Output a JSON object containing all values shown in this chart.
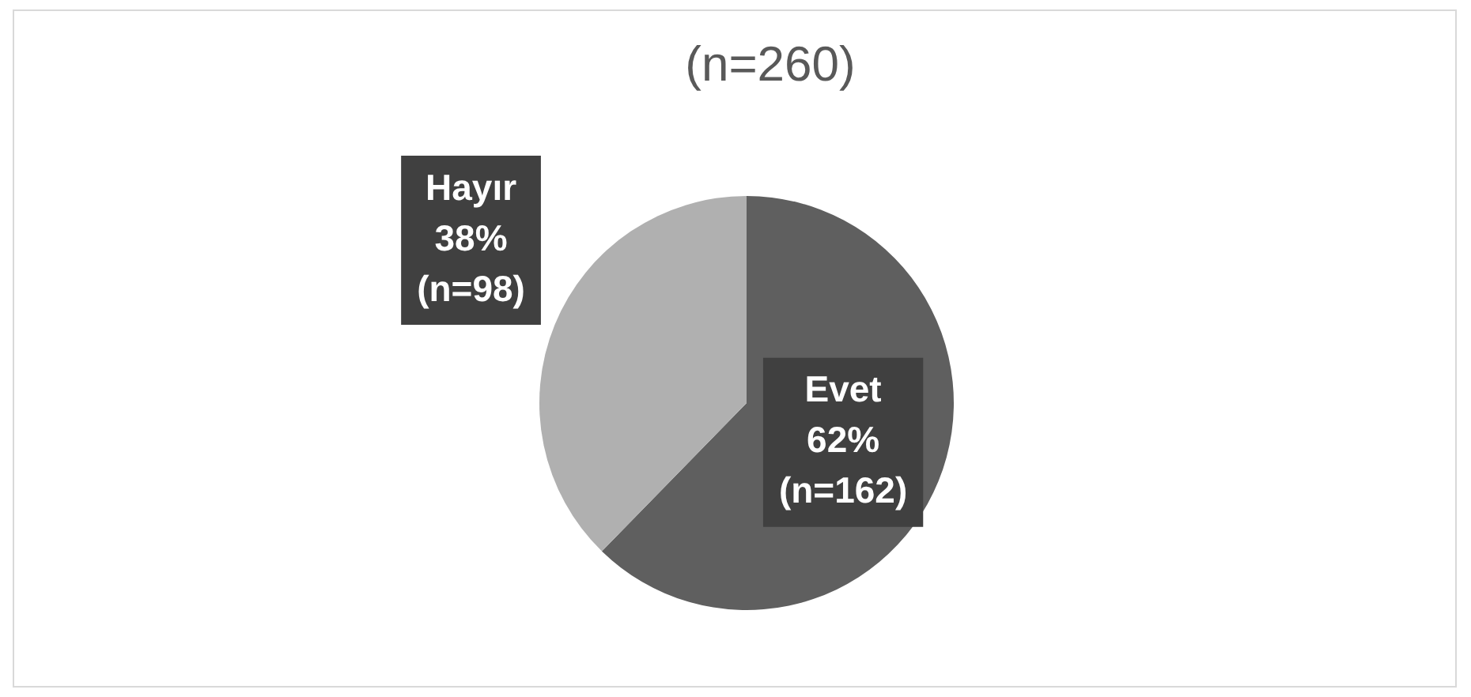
{
  "chart_data": {
    "type": "pie",
    "title": "(n=260)",
    "categories": [
      "Evet",
      "Hayır"
    ],
    "values": [
      162,
      98
    ],
    "colors": [
      "#5f5f5f",
      "#b0b0b0"
    ],
    "value_labels": [
      "62%\n(n=162)",
      "38%\n(n=98)"
    ]
  }
}
